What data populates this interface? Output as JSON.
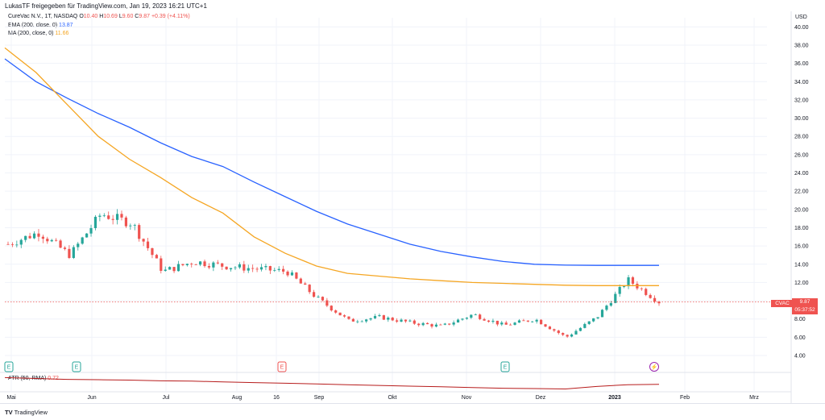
{
  "header": {
    "published_by": "LukasTF freigegeben für TradingView.com, Jan 19, 2023 16:21 UTC+1"
  },
  "legend": {
    "symbol": "CureVac N.V., 1T, NASDAQ",
    "ohlc_prefix_o": "O",
    "open": "10.40",
    "ohlc_prefix_h": "H",
    "high": "10.69",
    "ohlc_prefix_l": "L",
    "low": "9.60",
    "ohlc_prefix_c": "C",
    "close": "9.87",
    "change": "+0.39 (+4.11%)",
    "ema_label": "EMA (200, close, 0)",
    "ema_value": "13.87",
    "ma_label": "MA (200, close, 0)",
    "ma_value": "11.66",
    "atr_label": "ATR (50, RMA)",
    "atr_value": "0.72"
  },
  "price_axis": {
    "currency": "USD",
    "ticks": [
      "40.00",
      "38.00",
      "36.00",
      "34.00",
      "32.00",
      "30.00",
      "28.00",
      "26.00",
      "24.00",
      "22.00",
      "20.00",
      "18.00",
      "16.00",
      "14.00",
      "12.00",
      "10.00",
      "8.00",
      "6.00",
      "4.00"
    ],
    "current_symbol": "CVAC",
    "current_price": "9.87",
    "countdown": "05:37:52"
  },
  "time_axis": {
    "labels": [
      "Mai",
      "Jun",
      "Jul",
      "Aug",
      "16",
      "Sep",
      "Okt",
      "Nov",
      "Dez",
      "2023",
      "Feb",
      "Mrz"
    ]
  },
  "event_markers": [
    {
      "label": "E",
      "color": "#26a69a"
    },
    {
      "label": "E",
      "color": "#26a69a"
    },
    {
      "label": "E",
      "color": "#ef5350"
    },
    {
      "label": "E",
      "color": "#26a69a"
    },
    {
      "label": "⚡",
      "color": "#9c27b0"
    }
  ],
  "footer": {
    "logo_mark": "TV",
    "brand": "TradingView"
  },
  "colors": {
    "up": "#26a69a",
    "down": "#ef5350",
    "ema": "#2962ff",
    "ma": "#f5a623",
    "atr": "#b71c1c",
    "grid": "#f0f3fa"
  },
  "chart_data": {
    "type": "candlestick",
    "title": "CureVac N.V., 1T, NASDAQ",
    "ylim": [
      2.5,
      41
    ],
    "x": [
      "Apr 25",
      "May 8",
      "May 20",
      "Jun 1",
      "Jun 14",
      "Jun 28",
      "Jul 12",
      "Jul 26",
      "Aug 9",
      "Aug 23",
      "Sep 6",
      "Sep 20",
      "Oct 4",
      "Oct 18",
      "Nov 1",
      "Nov 15",
      "Nov 29",
      "Dec 13",
      "Dec 27",
      "Jan 5",
      "Jan 12",
      "Jan 19"
    ],
    "close": [
      16.2,
      17.5,
      15.0,
      19.5,
      18.5,
      13.2,
      14.3,
      13.8,
      13.5,
      13.2,
      10.2,
      7.8,
      8.2,
      7.6,
      7.2,
      8.5,
      7.3,
      8.0,
      6.0,
      8.2,
      12.3,
      9.87
    ],
    "series": [
      {
        "name": "EMA (200, close, 0)",
        "values": [
          36.5,
          34.0,
          32.2,
          30.5,
          29.0,
          27.3,
          25.8,
          24.7,
          23.0,
          21.4,
          19.8,
          18.4,
          17.3,
          16.2,
          15.4,
          14.8,
          14.3,
          14.0,
          13.9,
          13.87,
          13.87,
          13.87
        ]
      },
      {
        "name": "MA (200, close, 0)",
        "values": [
          37.7,
          35.0,
          31.5,
          28.0,
          25.5,
          23.5,
          21.3,
          19.6,
          17.0,
          15.2,
          13.8,
          13.0,
          12.7,
          12.4,
          12.2,
          12.0,
          11.9,
          11.8,
          11.7,
          11.66,
          11.66,
          11.66
        ]
      },
      {
        "name": "ATR (50, RMA)",
        "values": [
          1.1,
          1.05,
          1.0,
          0.98,
          0.96,
          0.92,
          0.9,
          0.86,
          0.82,
          0.78,
          0.74,
          0.7,
          0.66,
          0.62,
          0.58,
          0.54,
          0.5,
          0.48,
          0.46,
          0.6,
          0.7,
          0.72
        ]
      }
    ]
  }
}
